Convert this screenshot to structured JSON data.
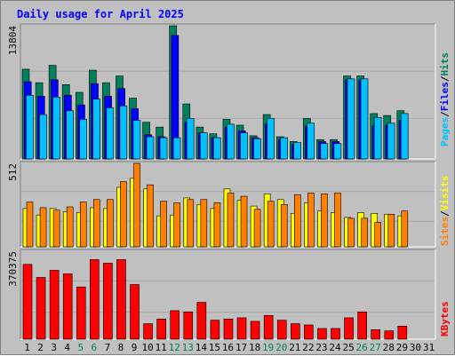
{
  "title": "Daily usage for April 2025",
  "chart_data": [
    {
      "panel": "hits_files_pages",
      "type": "bar",
      "categories": [
        "1",
        "2",
        "3",
        "4",
        "5",
        "6",
        "7",
        "8",
        "9",
        "10",
        "11",
        "12",
        "13",
        "14",
        "15",
        "16",
        "17",
        "18",
        "19",
        "20",
        "21",
        "22",
        "23",
        "24",
        "25",
        "26",
        "27",
        "28",
        "29",
        "30",
        "31"
      ],
      "y_max_label": "13804",
      "ylim": [
        0,
        13804
      ],
      "series": [
        {
          "name": "Hits",
          "color": "#00805C",
          "values": [
            9300,
            7900,
            9700,
            7700,
            6900,
            9200,
            7900,
            8600,
            6300,
            3800,
            3300,
            13804,
            5700,
            3300,
            2600,
            4100,
            3500,
            2400,
            4600,
            2300,
            1800,
            4200,
            2000,
            2000,
            8600,
            8600,
            4700,
            4500,
            5000,
            0,
            0
          ]
        },
        {
          "name": "Files",
          "color": "#0000FF",
          "values": [
            8000,
            6500,
            8200,
            6600,
            5600,
            7800,
            6500,
            7300,
            5200,
            2500,
            2300,
            12800,
            3800,
            2700,
            2200,
            3300,
            2900,
            2200,
            3600,
            2000,
            1500,
            3400,
            1800,
            1800,
            8200,
            8200,
            3400,
            3500,
            4000,
            0,
            0
          ]
        },
        {
          "name": "Pages",
          "color": "#00C0FF",
          "values": [
            6600,
            4600,
            6400,
            5000,
            4100,
            6200,
            5300,
            5500,
            4000,
            2300,
            2200,
            2200,
            4200,
            2700,
            2200,
            3600,
            2700,
            2100,
            4200,
            2200,
            1700,
            3700,
            1600,
            1600,
            8300,
            8300,
            4300,
            3700,
            4700,
            0,
            0
          ]
        }
      ]
    },
    {
      "panel": "visits_sites",
      "type": "bar",
      "categories": [
        "1",
        "2",
        "3",
        "4",
        "5",
        "6",
        "7",
        "8",
        "9",
        "10",
        "11",
        "12",
        "13",
        "14",
        "15",
        "16",
        "17",
        "18",
        "19",
        "20",
        "21",
        "22",
        "23",
        "24",
        "25",
        "26",
        "27",
        "28",
        "29",
        "30",
        "31"
      ],
      "y_max_label": "512",
      "ylim": [
        0,
        512
      ],
      "series": [
        {
          "name": "Visits",
          "color": "#FFFF00",
          "values": [
            235,
            195,
            235,
            215,
            210,
            240,
            235,
            365,
            420,
            355,
            190,
            195,
            300,
            260,
            235,
            355,
            285,
            250,
            325,
            290,
            205,
            270,
            220,
            210,
            180,
            210,
            205,
            200,
            190,
            0,
            0
          ]
        },
        {
          "name": "Sites",
          "color": "#FF8000",
          "values": [
            275,
            240,
            225,
            245,
            275,
            290,
            290,
            400,
            512,
            380,
            280,
            270,
            290,
            290,
            270,
            330,
            310,
            230,
            280,
            260,
            320,
            330,
            325,
            330,
            175,
            175,
            150,
            200,
            220,
            0,
            0
          ]
        }
      ]
    },
    {
      "panel": "kbytes",
      "type": "bar",
      "categories": [
        "1",
        "2",
        "3",
        "4",
        "5",
        "6",
        "7",
        "8",
        "9",
        "10",
        "11",
        "12",
        "13",
        "14",
        "15",
        "16",
        "17",
        "18",
        "19",
        "20",
        "21",
        "22",
        "23",
        "24",
        "25",
        "26",
        "27",
        "28",
        "29",
        "30",
        "31"
      ],
      "y_max_label": "370375",
      "ylim": [
        0,
        370375
      ],
      "series": [
        {
          "name": "KBytes",
          "color": "#FF0000",
          "values": [
            315000,
            260000,
            290000,
            275000,
            220000,
            335000,
            320000,
            335000,
            230000,
            65000,
            85000,
            120000,
            115000,
            155000,
            80000,
            85000,
            90000,
            75000,
            100000,
            80000,
            65000,
            60000,
            45000,
            45000,
            90000,
            115000,
            40000,
            35000,
            55000,
            0,
            0
          ]
        }
      ]
    }
  ],
  "x_labels": [
    "1",
    "2",
    "3",
    "4",
    "5",
    "6",
    "7",
    "8",
    "9",
    "10",
    "11",
    "12",
    "13",
    "14",
    "15",
    "16",
    "17",
    "18",
    "19",
    "20",
    "21",
    "22",
    "23",
    "24",
    "25",
    "26",
    "27",
    "28",
    "29",
    "30",
    "31"
  ],
  "weekend_days": [
    "5",
    "6",
    "12",
    "13",
    "19",
    "20",
    "26",
    "27"
  ],
  "right_labels": {
    "top": [
      {
        "text": "Pages",
        "color": "#00C0FF"
      },
      {
        "text": "/",
        "color": "#000000"
      },
      {
        "text": "Files",
        "color": "#0000FF"
      },
      {
        "text": "/",
        "color": "#000000"
      },
      {
        "text": "Hits",
        "color": "#00805C"
      }
    ],
    "middle": [
      {
        "text": "Sites",
        "color": "#FF8000"
      },
      {
        "text": "/",
        "color": "#000000"
      },
      {
        "text": "Visits",
        "color": "#FFFF00"
      }
    ],
    "bottom": [
      {
        "text": "KBytes",
        "color": "#FF0000"
      }
    ]
  }
}
